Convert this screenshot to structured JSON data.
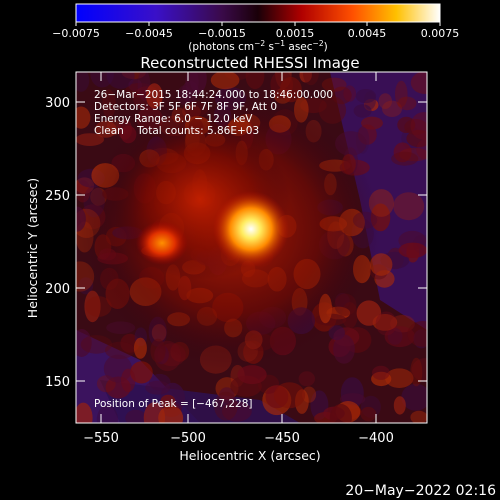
{
  "title": "Reconstructed RHESSI Image",
  "colorbar": {
    "ticks": [
      "−0.0075",
      "−0.0045",
      "−0.0015",
      "0.0015",
      "0.0045",
      "0.0075"
    ],
    "units_main": "(photons cm",
    "units_exp1": "−2",
    "units_mid": " s",
    "units_exp2": "−1",
    "units_mid2": " asec",
    "units_exp3": "−2",
    "units_end": ")"
  },
  "annotations": {
    "time": "26−Mar−2015 18:44:24.000 to 18:46:00.000",
    "detectors": "Detectors: 3F 5F 6F 7F 8F 9F, Att 0",
    "energy": "Energy Range: 6.0 − 12.0 keV",
    "clean": "Clean    Total counts: 5.86E+03",
    "peak": "Position of Peak = [−467,228]"
  },
  "axes": {
    "xlabel": "Heliocentric X (arcsec)",
    "ylabel": "Heliocentric Y (arcsec)",
    "xticks": [
      "−550",
      "−500",
      "−450",
      "−400"
    ],
    "yticks": [
      "300",
      "250",
      "200",
      "150"
    ]
  },
  "footer": {
    "timestamp": "20−May−2022 02:16"
  },
  "colors": {
    "background": "#000000",
    "text": "#ffffff"
  }
}
